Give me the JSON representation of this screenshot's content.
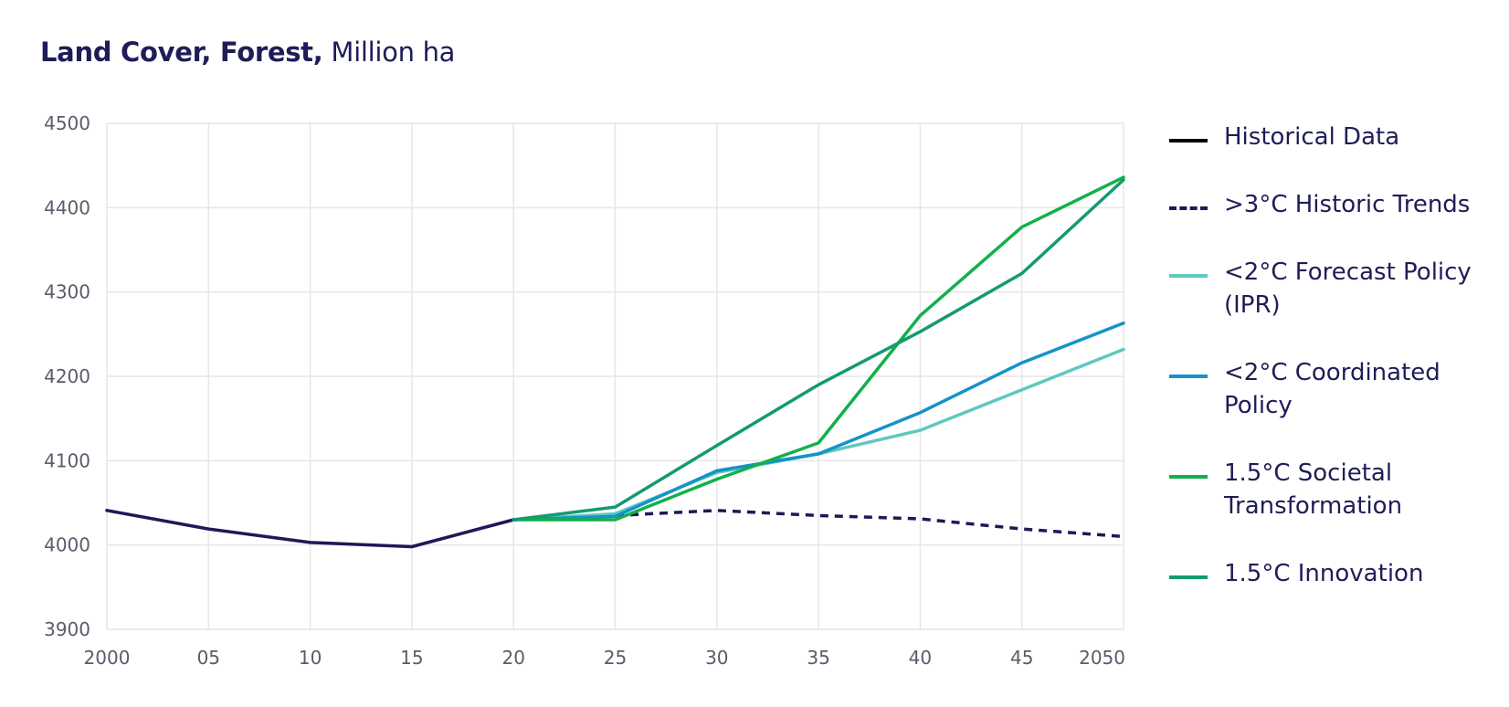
{
  "title": {
    "bold": "Land Cover, Forest,",
    "unit": "Million ha"
  },
  "chart_data": {
    "type": "line",
    "title": "Land Cover, Forest, Million ha",
    "xlabel": "",
    "ylabel": "",
    "x": [
      2000,
      2005,
      2010,
      2015,
      2020,
      2025,
      2030,
      2035,
      2040,
      2045,
      2050
    ],
    "x_tick_labels": [
      "2000",
      "05",
      "10",
      "15",
      "20",
      "25",
      "30",
      "35",
      "40",
      "45",
      "2050"
    ],
    "y_ticks": [
      3900,
      4000,
      4100,
      4200,
      4300,
      4400,
      4500
    ],
    "xlim": [
      2000,
      2050
    ],
    "ylim": [
      3900,
      4500
    ],
    "grid": true,
    "legend_position": "right",
    "series": [
      {
        "name": "Historical Data",
        "color": "#1c1a57",
        "dash": false,
        "x": [
          2000,
          2005,
          2010,
          2015,
          2020
        ],
        "values": [
          4041,
          4019,
          4003,
          3998,
          4030
        ]
      },
      {
        "name": ">3°C Historic Trends",
        "color": "#1c1a57",
        "dash": true,
        "x": [
          2020,
          2025,
          2030,
          2035,
          2040,
          2045,
          2050
        ],
        "values": [
          4030,
          4035,
          4041,
          4035,
          4031,
          4019,
          4010
        ]
      },
      {
        "name": "<2°C Forecast Policy (IPR)",
        "color": "#5ec8c0",
        "dash": false,
        "x": [
          2020,
          2025,
          2030,
          2035,
          2040,
          2045,
          2050
        ],
        "values": [
          4030,
          4037,
          4086,
          4108,
          4136,
          4184,
          4232
        ]
      },
      {
        "name": "<2°C Coordinated Policy",
        "color": "#1592c9",
        "dash": false,
        "x": [
          2020,
          2025,
          2030,
          2035,
          2040,
          2045,
          2050
        ],
        "values": [
          4030,
          4034,
          4088,
          4108,
          4157,
          4216,
          4263
        ]
      },
      {
        "name": "1.5°C Societal Transformation",
        "color": "#12b04a",
        "dash": false,
        "x": [
          2020,
          2025,
          2030,
          2035,
          2040,
          2045,
          2050
        ],
        "values": [
          4030,
          4030,
          4078,
          4121,
          4272,
          4377,
          4436
        ]
      },
      {
        "name": "1.5°C Innovation",
        "color": "#149a72",
        "dash": false,
        "x": [
          2020,
          2025,
          2030,
          2035,
          2040,
          2045,
          2050
        ],
        "values": [
          4030,
          4045,
          4118,
          4190,
          4253,
          4322,
          4433
        ]
      }
    ]
  }
}
